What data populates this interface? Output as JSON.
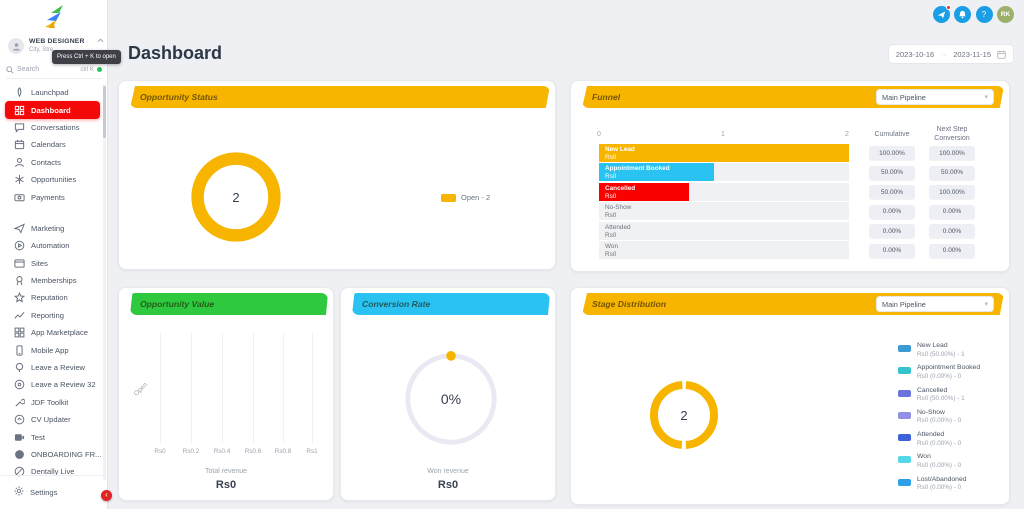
{
  "header": {
    "title": "Dashboard",
    "date_range": {
      "start": "2023-10-16",
      "separator": "→",
      "end": "2023-11-15"
    },
    "topbar_icons": [
      {
        "name": "announcements-icon",
        "badge": true
      },
      {
        "name": "notifications-bell-icon",
        "badge": false
      },
      {
        "name": "help-icon",
        "glyph": "?",
        "badge": false
      },
      {
        "name": "user-avatar",
        "initials": "RK",
        "badge": false
      }
    ]
  },
  "sidebar": {
    "user": {
      "name": "WEB DESIGNER",
      "location": "City, Stre..."
    },
    "tooltip": "Press Ctrl + K to open",
    "search": {
      "placeholder": "Search",
      "shortcut": "ctrl K"
    },
    "items": [
      {
        "label": "Launchpad",
        "icon": "launchpad",
        "active": false,
        "group": 1
      },
      {
        "label": "Dashboard",
        "icon": "dashboard",
        "active": true,
        "group": 1
      },
      {
        "label": "Conversations",
        "icon": "conversations",
        "active": false,
        "group": 1
      },
      {
        "label": "Calendars",
        "icon": "calendars",
        "active": false,
        "group": 1
      },
      {
        "label": "Contacts",
        "icon": "contacts",
        "active": false,
        "group": 1
      },
      {
        "label": "Opportunities",
        "icon": "opportunities",
        "active": false,
        "group": 1
      },
      {
        "label": "Payments",
        "icon": "payments",
        "active": false,
        "group": 1
      },
      {
        "label": "Marketing",
        "icon": "marketing",
        "active": false,
        "group": 2
      },
      {
        "label": "Automation",
        "icon": "automation",
        "active": false,
        "group": 2
      },
      {
        "label": "Sites",
        "icon": "sites",
        "active": false,
        "group": 2
      },
      {
        "label": "Memberships",
        "icon": "memberships",
        "active": false,
        "group": 2
      },
      {
        "label": "Reputation",
        "icon": "reputation",
        "active": false,
        "group": 2
      },
      {
        "label": "Reporting",
        "icon": "reporting",
        "active": false,
        "group": 2
      },
      {
        "label": "App Marketplace",
        "icon": "app-marketplace",
        "active": false,
        "group": 2
      },
      {
        "label": "Mobile App",
        "icon": "mobile-app",
        "active": false,
        "group": 2
      },
      {
        "label": "Leave a Review",
        "icon": "leave-a-review",
        "active": false,
        "group": 2
      },
      {
        "label": "Leave a Review 32",
        "icon": "leave-a-review-32",
        "active": false,
        "group": 2
      },
      {
        "label": "JDF Toolkit",
        "icon": "jdf-toolkit",
        "active": false,
        "group": 2
      },
      {
        "label": "CV Updater",
        "icon": "cv-updater",
        "active": false,
        "group": 2
      },
      {
        "label": "Test",
        "icon": "test",
        "active": false,
        "group": 2
      },
      {
        "label": "ONBOARDING FR...",
        "icon": "onboarding",
        "active": false,
        "group": 2
      },
      {
        "label": "Dentally Live",
        "icon": "dentally-live",
        "active": false,
        "group": 2
      }
    ],
    "settings_label": "Settings"
  },
  "cards": {
    "opportunity_status": {
      "title": "Opportunity Status",
      "accent": "#F7B500",
      "center_value": "2",
      "legend": [
        {
          "label": "Open - 2",
          "color": "#F7B500"
        }
      ]
    },
    "funnel": {
      "title": "Funnel",
      "accent": "#F7B500",
      "pipeline_label": "Main Pipeline",
      "axis_ticks": [
        "0",
        "1",
        "2"
      ],
      "col_cumulative": "Cumulative",
      "col_next_step": "Next Step Conversion",
      "rows": [
        {
          "stage": "New Lead",
          "value_label": "Rs0",
          "count": 2,
          "bar_pct": 100,
          "bar_color": "#F7B500",
          "cumulative": "100.00%",
          "next_step": "100.00%"
        },
        {
          "stage": "Appointment Booked",
          "value_label": "Rs0",
          "count": 1,
          "bar_pct": 46,
          "bar_color": "#29C2F1",
          "cumulative": "50.00%",
          "next_step": "50.00%"
        },
        {
          "stage": "Cancelled",
          "value_label": "Rs0",
          "count": 1,
          "bar_pct": 36,
          "bar_color": "#FA0000",
          "cumulative": "50.00%",
          "next_step": "100.00%"
        },
        {
          "stage": "No-Show",
          "value_label": "Rs0",
          "count": 0,
          "bar_pct": 0,
          "bar_color": null,
          "cumulative": "0.00%",
          "next_step": "0.00%"
        },
        {
          "stage": "Attended",
          "value_label": "Rs0",
          "count": 0,
          "bar_pct": 0,
          "bar_color": null,
          "cumulative": "0.00%",
          "next_step": "0.00%"
        },
        {
          "stage": "Won",
          "value_label": "Rs0",
          "count": 0,
          "bar_pct": 0,
          "bar_color": null,
          "cumulative": "0.00%",
          "next_step": "0.00%"
        }
      ]
    },
    "opportunity_value": {
      "title": "Opportunity Value",
      "accent": "#2FC940",
      "y_label": "Open",
      "x_ticks": [
        "Rs0",
        "Rs0.2",
        "Rs0.4",
        "Rs0.6",
        "Rs0.8",
        "Rs1"
      ],
      "caption": "Total revenue",
      "total": "Rs0"
    },
    "conversion_rate": {
      "title": "Conversion Rate",
      "accent": "#29C2F1",
      "value": "0%",
      "caption": "Won revenue",
      "total": "Rs0"
    },
    "stage_distribution": {
      "title": "Stage Distribution",
      "accent": "#F7B500",
      "pipeline_label": "Main Pipeline",
      "center_value": "2",
      "legend": [
        {
          "name": "New Lead",
          "detail": "Rs0 (50.00%) - 1",
          "color": "#3D9BD1"
        },
        {
          "name": "Appointment Booked",
          "detail": "Rs0 (0.00%) - 0",
          "color": "#35C3CE"
        },
        {
          "name": "Cancelled",
          "detail": "Rs0 (50.00%) - 1",
          "color": "#6A72DC"
        },
        {
          "name": "No-Show",
          "detail": "Rs0 (0.00%) - 0",
          "color": "#9290E4"
        },
        {
          "name": "Attended",
          "detail": "Rs0 (0.00%) - 0",
          "color": "#3E62D8"
        },
        {
          "name": "Won",
          "detail": "Rs0 (0.00%) - 0",
          "color": "#55D9E9"
        },
        {
          "name": "Lost/Abandoned",
          "detail": "Rs0 (0.00%) - 0",
          "color": "#2F9FE6"
        }
      ]
    }
  },
  "chart_data": [
    {
      "type": "pie",
      "title": "Opportunity Status",
      "categories": [
        "Open"
      ],
      "values": [
        2
      ],
      "colors": [
        "#F7B500"
      ],
      "center_label": "2"
    },
    {
      "type": "bar",
      "title": "Funnel",
      "categories": [
        "New Lead",
        "Appointment Booked",
        "Cancelled",
        "No-Show",
        "Attended",
        "Won"
      ],
      "values": [
        2,
        1,
        1,
        0,
        0,
        0
      ],
      "xlim": [
        0,
        2
      ],
      "cumulative_pct": [
        100,
        50,
        50,
        0,
        0,
        0
      ],
      "next_step_pct": [
        100,
        50,
        100,
        0,
        0,
        0
      ]
    },
    {
      "type": "bar",
      "title": "Opportunity Value",
      "categories": [
        "Open"
      ],
      "values": [
        0
      ],
      "xlabel_ticks": [
        "Rs0",
        "Rs0.2",
        "Rs0.4",
        "Rs0.6",
        "Rs0.8",
        "Rs1"
      ],
      "total_revenue": "Rs0"
    },
    {
      "type": "pie",
      "title": "Conversion Rate",
      "categories": [
        "Won"
      ],
      "values": [
        0
      ],
      "center_label": "0%",
      "won_revenue": "Rs0"
    },
    {
      "type": "pie",
      "title": "Stage Distribution",
      "categories": [
        "New Lead",
        "Appointment Booked",
        "Cancelled",
        "No-Show",
        "Attended",
        "Won",
        "Lost/Abandoned"
      ],
      "values": [
        1,
        0,
        1,
        0,
        0,
        0,
        0
      ],
      "center_label": "2"
    }
  ]
}
